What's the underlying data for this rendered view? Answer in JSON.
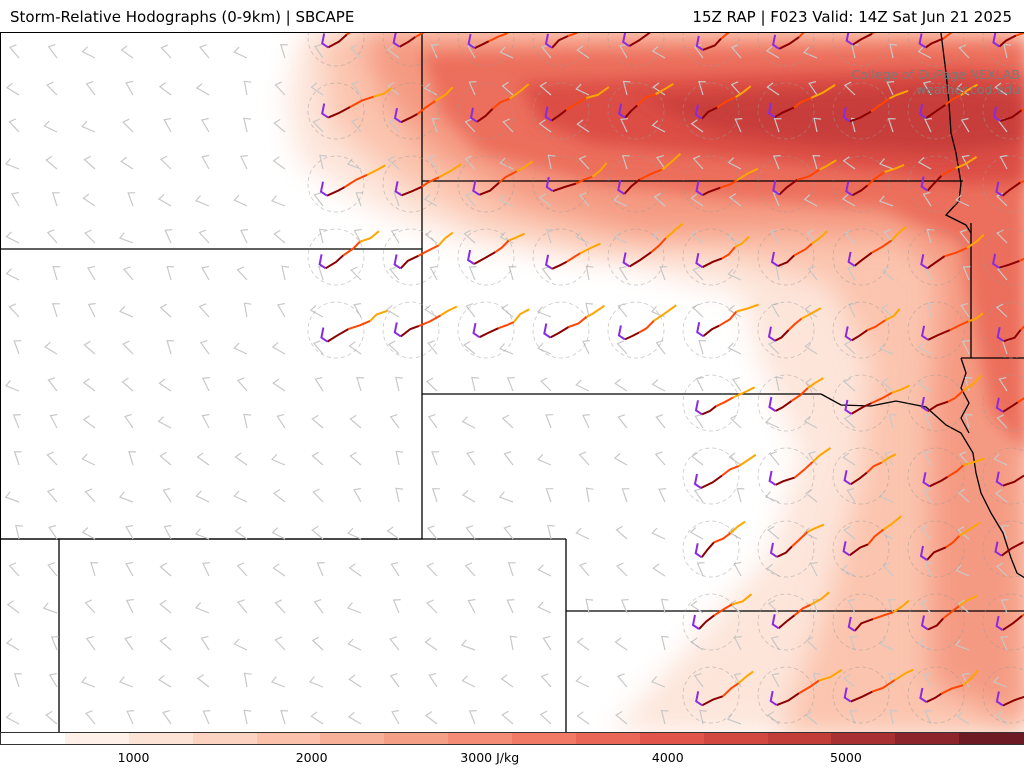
{
  "header": {
    "title_left": "Storm-Relative Hodographs (0-9km) | SBCAPE",
    "title_right": "15Z RAP | F023 Valid: 14Z Sat Jun 21 2025"
  },
  "credit": {
    "line1": "College of DuPage NEXLAB",
    "line2": "weather.cod.edu"
  },
  "colorbar": {
    "unit": "J/kg",
    "ticks": [
      {
        "label": "1000",
        "value": 1000
      },
      {
        "label": "2000",
        "value": 2000
      },
      {
        "label": "3000 J/kg",
        "value": 3000
      },
      {
        "label": "4000",
        "value": 4000
      },
      {
        "label": "5000",
        "value": 5000
      }
    ],
    "range": [
      250,
      6000
    ],
    "colors": [
      "#ffffff",
      "#fff1ea",
      "#fde2d6",
      "#fcd2c0",
      "#fbc1ab",
      "#f9b099",
      "#f69f87",
      "#f48c76",
      "#f07a66",
      "#ea6656",
      "#e1544a",
      "#d24740",
      "#c23c38",
      "#a83032",
      "#8b242b",
      "#6e1a24"
    ]
  },
  "map": {
    "fill_color": "#e8574a",
    "boundary_color": "#000000",
    "hodograph_colors": [
      "#8b0000",
      "#ff4500",
      "#ffa500",
      "#8a2be2"
    ],
    "barb_color": "#c8c8c8"
  }
}
